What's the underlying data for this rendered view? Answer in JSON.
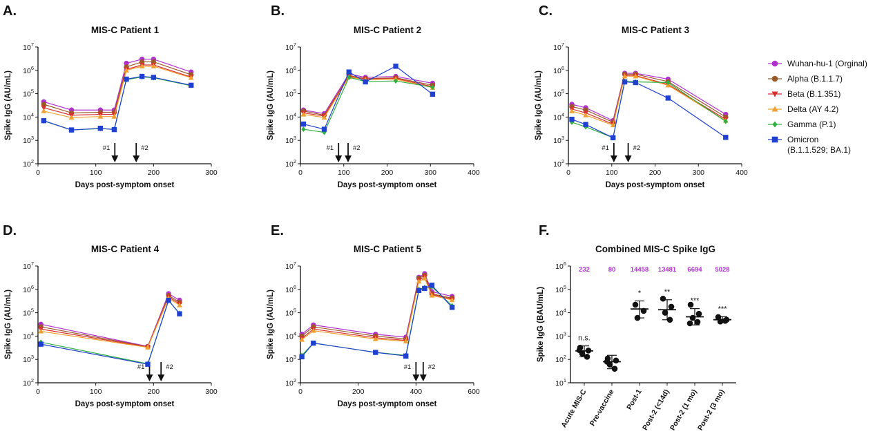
{
  "colors": {
    "Wuhan-hu-1 (Orginal)": "#b030d0",
    "Alpha (B.1.1.7)": "#9a5a28",
    "Beta (B.1.351)": "#d83030",
    "Delta (AY 4.2)": "#f0a030",
    "Gamma (P.1)": "#30b040",
    "Omicron (B.1.1.529; BA.1)": "#2040d0"
  },
  "legend": {
    "placement": "right",
    "entries": [
      {
        "label": "Wuhan-hu-1 (Orginal)",
        "marker": "circle"
      },
      {
        "label": "Alpha (B.1.1.7)",
        "marker": "circle"
      },
      {
        "label": "Beta (B.1.351)",
        "marker": "triangle-down"
      },
      {
        "label": "Delta (AY 4.2)",
        "marker": "triangle-up"
      },
      {
        "label": "Gamma (P.1)",
        "marker": "diamond"
      },
      {
        "label": "Omicron",
        "label2": "(B.1.1.529; BA.1)",
        "marker": "square"
      }
    ]
  },
  "chart_data": [
    {
      "panel": "A.",
      "type": "line",
      "title": "MIS-C Patient 1",
      "xlabel": "Days post-symptom onset",
      "ylabel": "Spike IgG (AU/mL)",
      "xlim": [
        0,
        300
      ],
      "xticks": [
        0,
        100,
        200,
        300
      ],
      "yscale": "log",
      "ylim_exp": [
        2,
        7
      ],
      "doses": [
        {
          "label": "#1",
          "day": 133
        },
        {
          "label": "#2",
          "day": 170
        }
      ],
      "x": [
        10,
        58,
        108,
        132,
        153,
        180,
        200,
        265
      ],
      "series": [
        {
          "name": "Wuhan-hu-1 (Orginal)",
          "values": [
            45000,
            20000,
            20000,
            20000,
            2000000,
            3000000,
            3000000,
            850000
          ]
        },
        {
          "name": "Alpha (B.1.1.7)",
          "values": [
            35000,
            15000,
            16000,
            16000,
            1400000,
            2300000,
            2300000,
            650000
          ]
        },
        {
          "name": "Beta (B.1.351)",
          "values": [
            25000,
            12000,
            13000,
            13000,
            1100000,
            1700000,
            1700000,
            520000
          ]
        },
        {
          "name": "Delta (AY 4.2)",
          "values": [
            18000,
            9500,
            10500,
            10500,
            1000000,
            1500000,
            1500000,
            480000
          ]
        },
        {
          "name": "Gamma (P.1)",
          "values": [
            6800,
            2800,
            3200,
            3000,
            400000,
            520000,
            480000,
            220000
          ]
        },
        {
          "name": "Omicron (B.1.1.529; BA.1)",
          "values": [
            7000,
            2800,
            3300,
            2900,
            420000,
            550000,
            500000,
            230000
          ]
        }
      ]
    },
    {
      "panel": "B.",
      "type": "line",
      "title": "MIS-C Patient 2",
      "xlabel": "Days post-symptom onset",
      "ylabel": "Spike IgG (AU/mL)",
      "xlim": [
        0,
        400
      ],
      "xticks": [
        0,
        100,
        200,
        300,
        400
      ],
      "yscale": "log",
      "ylim_exp": [
        2,
        7
      ],
      "doses": [
        {
          "label": "#1",
          "day": 88
        },
        {
          "label": "#2",
          "day": 110
        }
      ],
      "x": [
        7,
        55,
        112,
        150,
        220,
        305
      ],
      "series": [
        {
          "name": "Wuhan-hu-1 (Orginal)",
          "values": [
            20000,
            14000,
            700000,
            500000,
            550000,
            280000
          ]
        },
        {
          "name": "Alpha (B.1.1.7)",
          "values": [
            18000,
            12000,
            600000,
            440000,
            480000,
            230000
          ]
        },
        {
          "name": "Beta (B.1.351)",
          "values": [
            15000,
            11000,
            560000,
            420000,
            450000,
            200000
          ]
        },
        {
          "name": "Delta (AY 4.2)",
          "values": [
            13000,
            9500,
            520000,
            400000,
            420000,
            180000
          ]
        },
        {
          "name": "Gamma (P.1)",
          "values": [
            3000,
            2200,
            500000,
            330000,
            350000,
            190000
          ]
        },
        {
          "name": "Omicron (B.1.1.529; BA.1)",
          "values": [
            5000,
            3000,
            850000,
            320000,
            1500000,
            95000
          ]
        }
      ]
    },
    {
      "panel": "C.",
      "type": "line",
      "title": "MIS-C Patient 3",
      "xlabel": "Days post-symptom onset",
      "ylabel": "Spike IgG (AU/mL)",
      "xlim": [
        0,
        400
      ],
      "xticks": [
        0,
        100,
        200,
        300,
        400
      ],
      "yscale": "log",
      "ylim_exp": [
        2,
        7
      ],
      "doses": [
        {
          "label": "#1",
          "day": 105
        },
        {
          "label": "#2",
          "day": 138
        }
      ],
      "x": [
        8,
        40,
        103,
        130,
        155,
        230,
        363
      ],
      "series": [
        {
          "name": "Wuhan-hu-1 (Orginal)",
          "values": [
            35000,
            25000,
            7000,
            750000,
            750000,
            420000,
            13000
          ]
        },
        {
          "name": "Alpha (B.1.1.7)",
          "values": [
            28000,
            20000,
            6000,
            680000,
            680000,
            330000,
            10000
          ]
        },
        {
          "name": "Beta (B.1.351)",
          "values": [
            22000,
            15000,
            5000,
            600000,
            600000,
            250000,
            8000
          ]
        },
        {
          "name": "Delta (AY 4.2)",
          "values": [
            18000,
            12000,
            4500,
            560000,
            560000,
            230000,
            7000
          ]
        },
        {
          "name": "Gamma (P.1)",
          "values": [
            6000,
            3800,
            1300,
            340000,
            320000,
            300000,
            6500
          ]
        },
        {
          "name": "Omicron (B.1.1.529; BA.1)",
          "values": [
            8000,
            4800,
            1300,
            320000,
            300000,
            65000,
            1350
          ]
        }
      ]
    },
    {
      "panel": "D.",
      "type": "line",
      "title": "MIS-C Patient 4",
      "xlabel": "Days post-symptom onset",
      "ylabel": "Spike IgG (AU/mL)",
      "xlim": [
        0,
        300
      ],
      "xticks": [
        0,
        100,
        200,
        300
      ],
      "yscale": "log",
      "ylim_exp": [
        2,
        7
      ],
      "doses": [
        {
          "label": "#1",
          "day": 193
        },
        {
          "label": "#2",
          "day": 213
        }
      ],
      "x": [
        5,
        190,
        226,
        245
      ],
      "series": [
        {
          "name": "Wuhan-hu-1 (Orginal)",
          "values": [
            32000,
            3600,
            650000,
            340000
          ]
        },
        {
          "name": "Alpha (B.1.1.7)",
          "values": [
            25000,
            3500,
            550000,
            280000
          ]
        },
        {
          "name": "Beta (B.1.351)",
          "values": [
            20000,
            3400,
            480000,
            240000
          ]
        },
        {
          "name": "Delta (AY 4.2)",
          "values": [
            16000,
            3300,
            420000,
            210000
          ]
        },
        {
          "name": "Gamma (P.1)",
          "values": [
            5500,
            650,
            330000,
            95000
          ]
        },
        {
          "name": "Omicron (B.1.1.529; BA.1)",
          "values": [
            4500,
            620,
            340000,
            90000
          ]
        }
      ]
    },
    {
      "panel": "E.",
      "type": "line",
      "title": "MIS-C Patient 5",
      "xlabel": "Days post-symptom onset",
      "ylabel": "Spike IgG (AU/mL)",
      "xlim": [
        0,
        600
      ],
      "xticks": [
        0,
        200,
        400,
        600
      ],
      "yscale": "log",
      "ylim_exp": [
        2,
        7
      ],
      "doses": [
        {
          "label": "#1",
          "day": 400
        },
        {
          "label": "#2",
          "day": 425
        }
      ],
      "x": [
        5,
        45,
        260,
        365,
        410,
        430,
        455,
        525
      ],
      "series": [
        {
          "name": "Wuhan-hu-1 (Orginal)",
          "values": [
            12000,
            30000,
            12000,
            9000,
            3300000,
            4700000,
            800000,
            500000
          ]
        },
        {
          "name": "Alpha (B.1.1.7)",
          "values": [
            10000,
            25000,
            10000,
            7500,
            3000000,
            4000000,
            650000,
            420000
          ]
        },
        {
          "name": "Beta (B.1.351)",
          "values": [
            8000,
            20000,
            8500,
            6500,
            2500000,
            3500000,
            600000,
            380000
          ]
        },
        {
          "name": "Delta (AY 4.2)",
          "values": [
            7000,
            17000,
            7500,
            6000,
            2200000,
            3000000,
            550000,
            350000
          ]
        },
        {
          "name": "Gamma (P.1)",
          "values": [
            1500,
            5000,
            2000,
            1500,
            1000000,
            1200000,
            1300000,
            200000
          ]
        },
        {
          "name": "Omicron (B.1.1.529; BA.1)",
          "values": [
            1300,
            5000,
            2000,
            1400,
            900000,
            1100000,
            1500000,
            170000
          ]
        }
      ]
    },
    {
      "panel": "F.",
      "type": "scatter",
      "title": "Combined MIS-C Spike IgG",
      "ylabel": "Spike IgG (BAU/mL)",
      "yscale": "log",
      "ylim_exp": [
        1,
        6
      ],
      "categories": [
        "Acute MIS-C",
        "Pre-vaccine",
        "Post-1",
        "Post-2 (<14d)",
        "Post-2 (1 mo)",
        "Post-2 (3 mo)"
      ],
      "medians_label": [
        "232",
        "80",
        "14458",
        "13481",
        "6694",
        "5028"
      ],
      "significance": [
        "n.s.",
        "",
        "*",
        "**",
        "***",
        "***"
      ],
      "center": [
        232,
        80,
        14458,
        13481,
        6694,
        5028
      ],
      "error": [
        [
          130,
          380
        ],
        [
          40,
          150
        ],
        [
          6000,
          32000
        ],
        [
          5000,
          36000
        ],
        [
          3000,
          15000
        ],
        [
          3800,
          6800
        ]
      ],
      "points": [
        [
          320,
          240,
          180,
          130,
          250
        ],
        [
          110,
          90,
          60,
          40,
          80
        ],
        [
          22000,
          12000,
          6000
        ],
        [
          40000,
          18000,
          10000,
          5000
        ],
        [
          22000,
          9000,
          6000,
          4000,
          3500
        ],
        [
          6500,
          5000,
          4200,
          4500
        ]
      ]
    }
  ]
}
